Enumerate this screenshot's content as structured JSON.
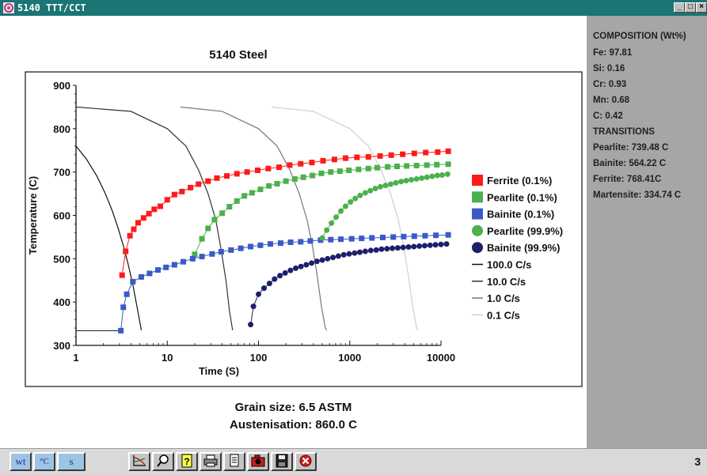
{
  "window": {
    "title": "5140 TTT/CCT",
    "title_bar_color": "#1a7573"
  },
  "chart_data": {
    "type": "scatter",
    "title": "5140 Steel",
    "xlabel": "Time (S)",
    "ylabel": "Temperature (C)",
    "xscale": "log",
    "xlim": [
      1,
      15000
    ],
    "ylim": [
      300,
      900
    ],
    "xticks": [
      1,
      10,
      100,
      1000,
      10000
    ],
    "xtick_labels": [
      "1",
      "10",
      "100",
      "1000",
      "10000"
    ],
    "yticks": [
      300,
      400,
      500,
      600,
      700,
      800,
      900
    ],
    "ytick_labels": [
      "300",
      "400",
      "500",
      "600",
      "700",
      "800",
      "900"
    ],
    "grid": false,
    "legend_position": "right",
    "series": [
      {
        "name": "Ferrite (0.1%)",
        "marker": "square",
        "color": "#ff1a1a",
        "x": [
          3.2,
          3.5,
          3.9,
          4.3,
          4.8,
          5.5,
          6.3,
          7.2,
          8.4,
          10,
          12,
          14.5,
          18,
          22,
          28,
          35,
          45,
          58,
          75,
          98,
          128,
          168,
          220,
          290,
          385,
          510,
          680,
          900,
          1200,
          1600,
          2150,
          2850,
          3800,
          5100,
          6800,
          9200,
          12000
        ],
        "y": [
          462,
          517,
          553,
          568,
          583,
          594,
          604,
          614,
          621,
          636,
          648,
          655,
          664,
          672,
          679,
          686,
          691,
          696,
          700,
          704,
          708,
          711,
          716,
          719,
          722,
          726,
          729,
          732,
          734,
          735,
          737,
          739,
          741,
          743,
          745,
          746,
          748
        ]
      },
      {
        "name": "Pearlite (0.1%)",
        "color": "#4cb04c",
        "marker": "square",
        "x": [
          20,
          24,
          28,
          33,
          40,
          48,
          58,
          70,
          85,
          105,
          130,
          160,
          200,
          250,
          310,
          390,
          490,
          620,
          780,
          980,
          1250,
          1600,
          2000,
          2600,
          3300,
          4200,
          5400,
          7000,
          9000,
          12000
        ],
        "y": [
          510,
          546,
          570,
          590,
          605,
          620,
          633,
          645,
          652,
          660,
          668,
          673,
          679,
          684,
          688,
          692,
          697,
          700,
          702,
          704,
          706,
          708,
          710,
          712,
          713,
          714,
          715,
          716,
          717,
          718
        ]
      },
      {
        "name": "Bainite (0.1%)",
        "color": "#3a5ac8",
        "marker": "square",
        "x": [
          3.1,
          3.3,
          3.6,
          4.2,
          5.2,
          6.4,
          7.9,
          9.7,
          12,
          15,
          19,
          24,
          31,
          39,
          50,
          64,
          82,
          105,
          135,
          175,
          225,
          290,
          370,
          480,
          620,
          800,
          1050,
          1350,
          1750,
          2300,
          3000,
          3900,
          5100,
          6700,
          8800,
          12000
        ],
        "y": [
          334,
          388,
          418,
          447,
          458,
          466,
          474,
          480,
          486,
          493,
          500,
          505,
          511,
          516,
          520,
          524,
          528,
          531,
          534,
          536,
          538,
          539,
          541,
          543,
          544,
          545,
          546,
          547,
          548,
          549,
          550,
          551,
          552,
          553,
          554,
          555
        ]
      },
      {
        "name": "Pearlite (99.9%)",
        "color": "#4cb04c",
        "marker": "circle",
        "x": [
          500,
          560,
          630,
          710,
          800,
          900,
          1020,
          1150,
          1300,
          1480,
          1680,
          1910,
          2170,
          2470,
          2810,
          3200,
          3650,
          4150,
          4730,
          5400,
          6150,
          7000,
          8000,
          9100,
          10300,
          11800
        ],
        "y": [
          548,
          566,
          582,
          596,
          610,
          621,
          631,
          639,
          646,
          652,
          657,
          662,
          666,
          669,
          672,
          675,
          678,
          680,
          682,
          684,
          686,
          688,
          690,
          692,
          693,
          695
        ]
      },
      {
        "name": "Bainite (99.9%)",
        "color": "#1c1f6b",
        "marker": "circle",
        "x": [
          82,
          88,
          100,
          115,
          132,
          150,
          172,
          196,
          224,
          256,
          292,
          334,
          382,
          437,
          500,
          572,
          655,
          750,
          860,
          985,
          1130,
          1290,
          1480,
          1700,
          1950,
          2230,
          2560,
          2930,
          3360,
          3850,
          4410,
          5050,
          5790,
          6630,
          7600,
          8700,
          10000,
          11500
        ],
        "y": [
          348,
          390,
          418,
          432,
          443,
          453,
          461,
          467,
          473,
          478,
          482,
          486,
          490,
          494,
          497,
          500,
          503,
          506,
          509,
          511,
          513,
          515,
          517,
          519,
          520,
          522,
          523,
          524,
          525,
          526,
          527,
          528,
          529,
          530,
          531,
          532,
          533,
          534
        ]
      }
    ],
    "cooling_curves": [
      {
        "name": "100.0 C/s",
        "color": "#111111",
        "x": [
          1.0,
          1.3,
          1.7,
          2.1,
          2.5,
          2.9,
          3.3,
          3.7,
          4.2,
          4.7,
          5.2
        ],
        "y": [
          760,
          730,
          690,
          650,
          610,
          570,
          530,
          490,
          440,
          385,
          335
        ]
      },
      {
        "name": "10.0 C/s",
        "color": "#333333",
        "x": [
          1,
          4,
          10,
          16,
          22,
          28,
          34,
          39,
          44,
          48,
          52
        ],
        "y": [
          850,
          840,
          800,
          760,
          705,
          650,
          590,
          520,
          450,
          380,
          335
        ]
      },
      {
        "name": "1.0 C/s",
        "color": "#777777",
        "x": [
          14,
          40,
          100,
          160,
          220,
          280,
          340,
          390,
          440,
          490,
          540,
          560
        ],
        "y": [
          850,
          840,
          800,
          760,
          705,
          650,
          590,
          530,
          460,
          390,
          340,
          335
        ]
      },
      {
        "name": "0.1 C/s",
        "color": "#cfcfcf",
        "x": [
          140,
          400,
          1000,
          1600,
          2200,
          2800,
          3400,
          3900,
          4400,
          4900,
          5400,
          5600
        ],
        "y": [
          850,
          840,
          800,
          760,
          705,
          650,
          590,
          530,
          460,
          390,
          340,
          335
        ]
      }
    ],
    "reference_lines": [
      {
        "x": [
          1,
          3.2
        ],
        "y": [
          334,
          334
        ],
        "color": "#111111"
      }
    ],
    "legend_entries": [
      {
        "label": "Ferrite (0.1%)",
        "symbol": "square",
        "color": "#ff1a1a"
      },
      {
        "label": "Pearlite (0.1%)",
        "symbol": "square",
        "color": "#4cb04c"
      },
      {
        "label": "Bainite (0.1%)",
        "symbol": "square",
        "color": "#3a5ac8"
      },
      {
        "label": "Pearlite (99.9%)",
        "symbol": "circle",
        "color": "#4cb04c"
      },
      {
        "label": "Bainite (99.9%)",
        "symbol": "circle",
        "color": "#1c1f6b"
      },
      {
        "label": "100.0 C/s",
        "symbol": "line",
        "color": "#111111"
      },
      {
        "label": "10.0 C/s",
        "symbol": "line",
        "color": "#333333"
      },
      {
        "label": "1.0 C/s",
        "symbol": "line",
        "color": "#777777"
      },
      {
        "label": "0.1 C/s",
        "symbol": "line",
        "color": "#cfcfcf"
      }
    ]
  },
  "footer": {
    "grain_size": "Grain size: 6.5 ASTM",
    "austenisation": "Austenisation: 860.0 C"
  },
  "side_panel": {
    "composition_heading": "COMPOSITION (Wt%)",
    "composition": [
      "Fe: 97.81",
      "Si: 0.16",
      "Cr: 0.93",
      "Mn: 0.68",
      "C: 0.42"
    ],
    "transitions_heading": "TRANSITIONS",
    "transitions": [
      "Pearlite: 739.48 C",
      "Bainite: 564.22 C",
      "Ferrite: 768.41C",
      "Martensite: 334.74 C"
    ]
  },
  "toolbar": {
    "unit_buttons": [
      "wt",
      "°C",
      "s"
    ],
    "tool_icons": [
      "chart-icon",
      "zoom-icon",
      "help-icon",
      "print-icon",
      "document-icon",
      "camera-icon",
      "save-icon",
      "close-icon"
    ],
    "page_number": "3"
  }
}
